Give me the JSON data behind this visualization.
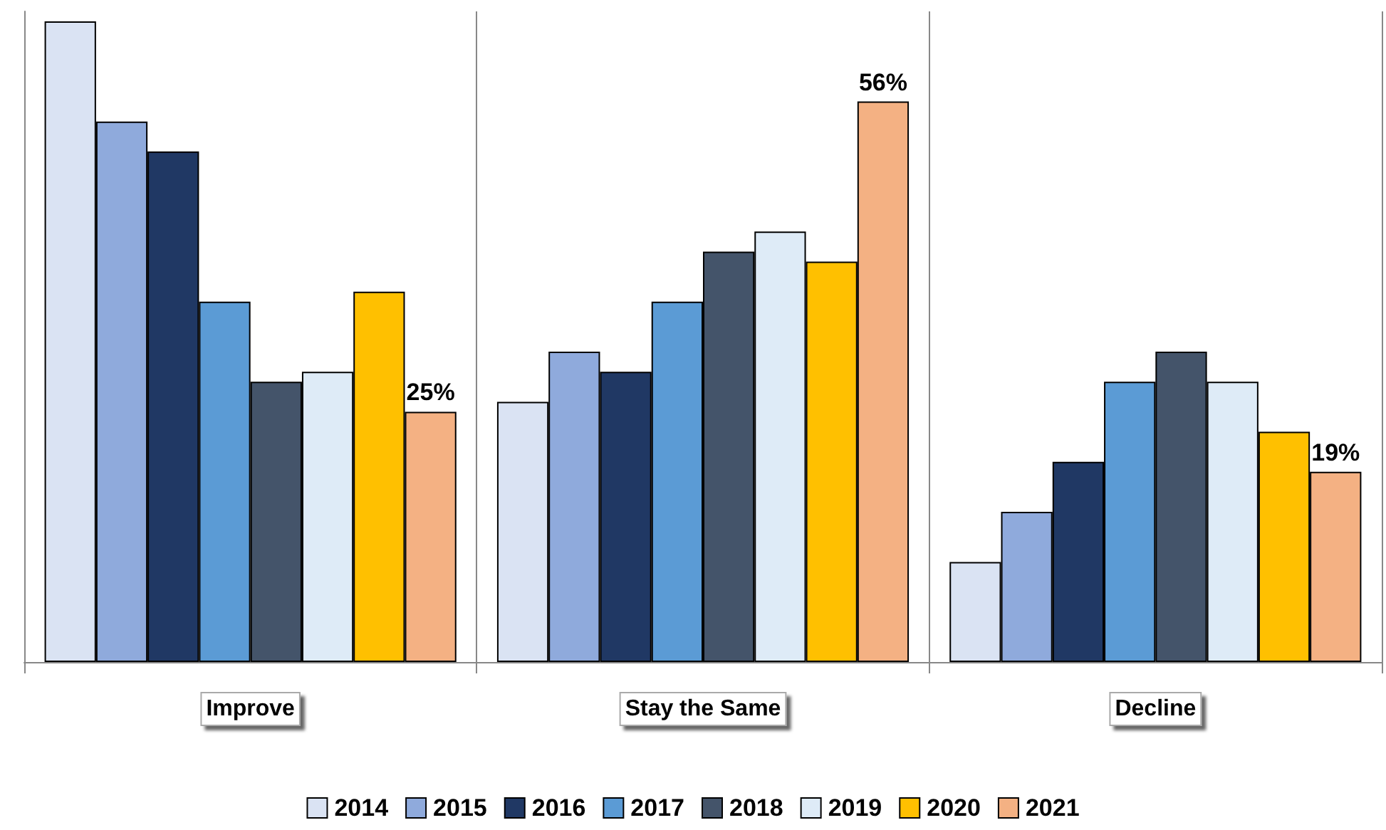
{
  "chart_data": {
    "type": "bar",
    "categories": [
      "Improve",
      "Stay the Same",
      "Decline"
    ],
    "series": [
      {
        "name": "2014",
        "color": "#dae3f3",
        "values": [
          64,
          26,
          10
        ]
      },
      {
        "name": "2015",
        "color": "#8faadc",
        "values": [
          54,
          31,
          15
        ]
      },
      {
        "name": "2016",
        "color": "#203864",
        "values": [
          51,
          29,
          20
        ]
      },
      {
        "name": "2017",
        "color": "#5b9bd5",
        "values": [
          36,
          36,
          28
        ]
      },
      {
        "name": "2018",
        "color": "#44546a",
        "values": [
          28,
          41,
          31
        ]
      },
      {
        "name": "2019",
        "color": "#deebf7",
        "values": [
          29,
          43,
          28
        ]
      },
      {
        "name": "2020",
        "color": "#ffc000",
        "values": [
          37,
          40,
          23
        ]
      },
      {
        "name": "2021",
        "color": "#f4b183",
        "values": [
          25,
          56,
          19
        ],
        "value_labels": [
          "25%",
          "56%",
          "19%"
        ]
      }
    ],
    "ylim": [
      0,
      65
    ],
    "tick_labels": "x",
    "grid": "x",
    "legend": "bottom"
  }
}
